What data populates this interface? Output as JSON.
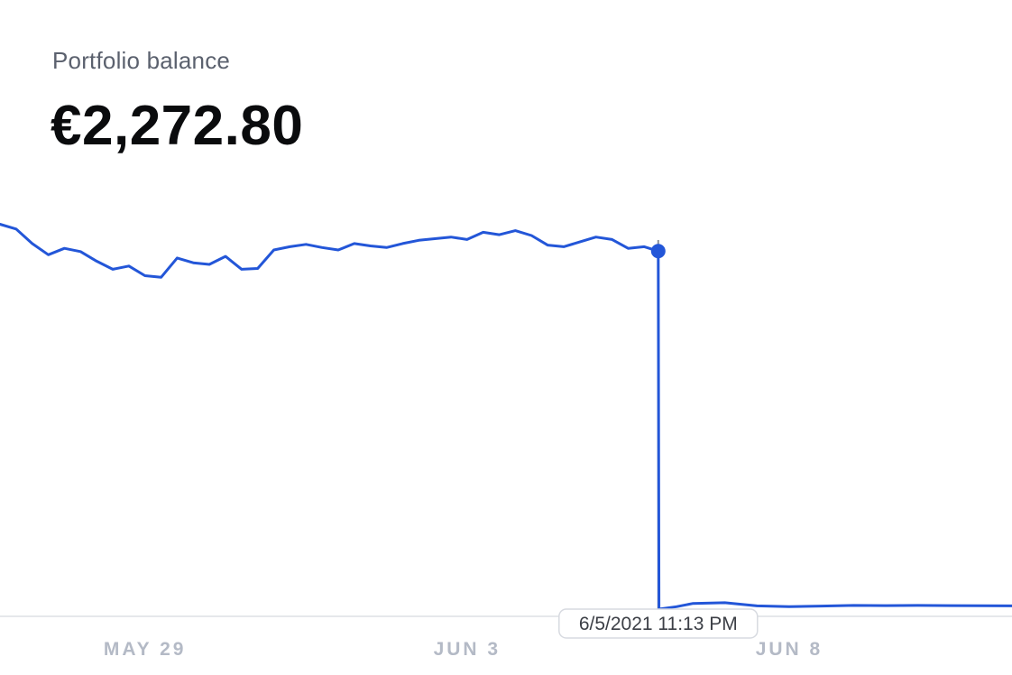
{
  "header": {
    "label": "Portfolio balance",
    "value": "€2,272.80"
  },
  "tooltip": {
    "text": "6/5/2021 11:13 PM"
  },
  "colors": {
    "line": "#2356d8",
    "axis": "#e6e8eb",
    "crosshair": "#8a8f99",
    "tick": "#b4bac6"
  },
  "chart_data": {
    "type": "line",
    "title": "",
    "xlabel": "",
    "ylabel": "",
    "x_tick_labels": [
      "MAY 29",
      "JUN 3",
      "JUN 8"
    ],
    "x_ticks": [
      "2021-05-29",
      "2021-06-03",
      "2021-06-08"
    ],
    "xlim": [
      "2021-05-26T18:00",
      "2021-06-11T11:00"
    ],
    "ylim": [
      0,
      2600
    ],
    "grid": false,
    "legend": "none",
    "hover_point": {
      "x": "2021-06-05T23:13",
      "y": 2272.8
    },
    "series": [
      {
        "x": [
          "2021-05-26T18:00",
          "2021-05-27T00:00",
          "2021-05-27T06:00",
          "2021-05-27T12:00",
          "2021-05-27T18:00",
          "2021-05-28T00:00",
          "2021-05-28T06:00",
          "2021-05-28T12:00",
          "2021-05-28T18:00",
          "2021-05-29T00:00",
          "2021-05-29T06:00",
          "2021-05-29T12:00",
          "2021-05-29T18:00",
          "2021-05-30T00:00",
          "2021-05-30T06:00",
          "2021-05-30T12:00",
          "2021-05-30T18:00",
          "2021-05-31T00:00",
          "2021-05-31T06:00",
          "2021-05-31T12:00",
          "2021-05-31T18:00",
          "2021-06-01T00:00",
          "2021-06-01T06:00",
          "2021-06-01T12:00",
          "2021-06-01T18:00",
          "2021-06-02T00:00",
          "2021-06-02T06:00",
          "2021-06-02T12:00",
          "2021-06-02T18:00",
          "2021-06-03T00:00",
          "2021-06-03T06:00",
          "2021-06-03T12:00",
          "2021-06-03T18:00",
          "2021-06-04T00:00",
          "2021-06-04T06:00",
          "2021-06-04T12:00",
          "2021-06-04T18:00",
          "2021-06-05T00:00",
          "2021-06-05T06:00",
          "2021-06-05T12:00",
          "2021-06-05T18:00",
          "2021-06-05T23:13",
          "2021-06-05T23:30",
          "2021-06-06T06:00",
          "2021-06-06T12:00",
          "2021-06-07T00:00",
          "2021-06-07T12:00",
          "2021-06-08T00:00",
          "2021-06-08T12:00",
          "2021-06-09T00:00",
          "2021-06-09T12:00",
          "2021-06-10T00:00",
          "2021-06-10T12:00",
          "2021-06-11T00:00",
          "2021-06-11T11:00"
        ],
        "values": [
          2440,
          2410,
          2320,
          2250,
          2290,
          2270,
          2210,
          2160,
          2180,
          2120,
          2110,
          2230,
          2200,
          2190,
          2240,
          2160,
          2165,
          2280,
          2300,
          2315,
          2295,
          2280,
          2320,
          2305,
          2295,
          2320,
          2340,
          2350,
          2360,
          2345,
          2390,
          2375,
          2400,
          2370,
          2310,
          2300,
          2330,
          2360,
          2345,
          2290,
          2300,
          2272.8,
          45,
          60,
          80,
          85,
          65,
          60,
          64,
          68,
          67,
          68,
          67,
          66,
          65
        ]
      }
    ]
  }
}
